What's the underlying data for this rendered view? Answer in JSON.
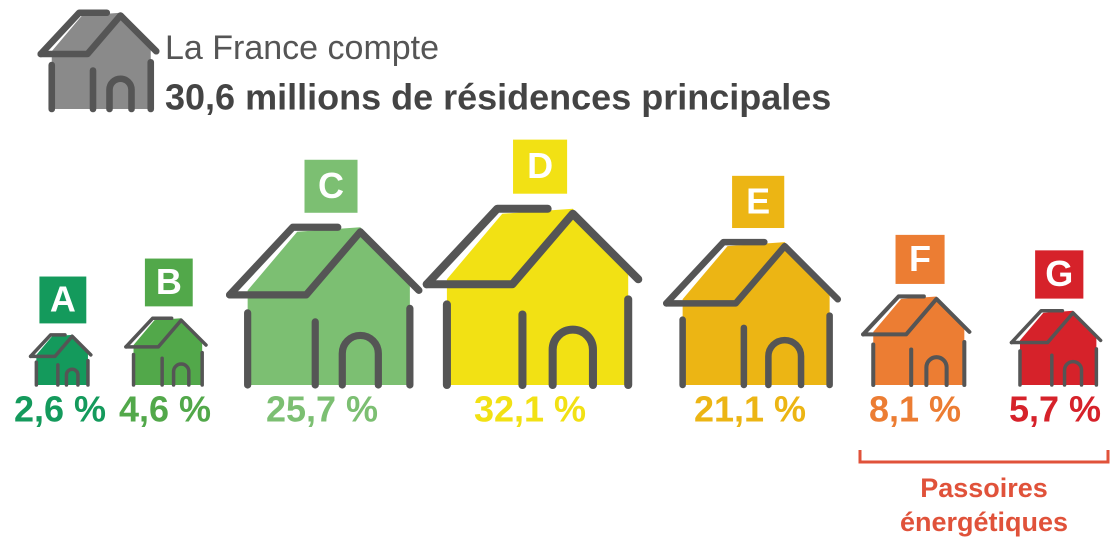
{
  "chart_data": {
    "type": "pictogram",
    "title": "La France compte",
    "subtitle": "30,6 millions de résidences principales",
    "categories": [
      "A",
      "B",
      "C",
      "D",
      "E",
      "F",
      "G"
    ],
    "values": [
      2.6,
      4.6,
      25.7,
      32.1,
      21.1,
      8.1,
      5.7
    ],
    "value_labels": [
      "2,6 %",
      "4,6 %",
      "25,7 %",
      "32,1 %",
      "21,1 %",
      "8,1 %",
      "5,7 %"
    ],
    "colors": [
      "#149a5c",
      "#52a84a",
      "#7cbf72",
      "#f2e114",
      "#ecb514",
      "#ec7d33",
      "#d6222a"
    ],
    "annotation": "Passoires énergétiques"
  }
}
